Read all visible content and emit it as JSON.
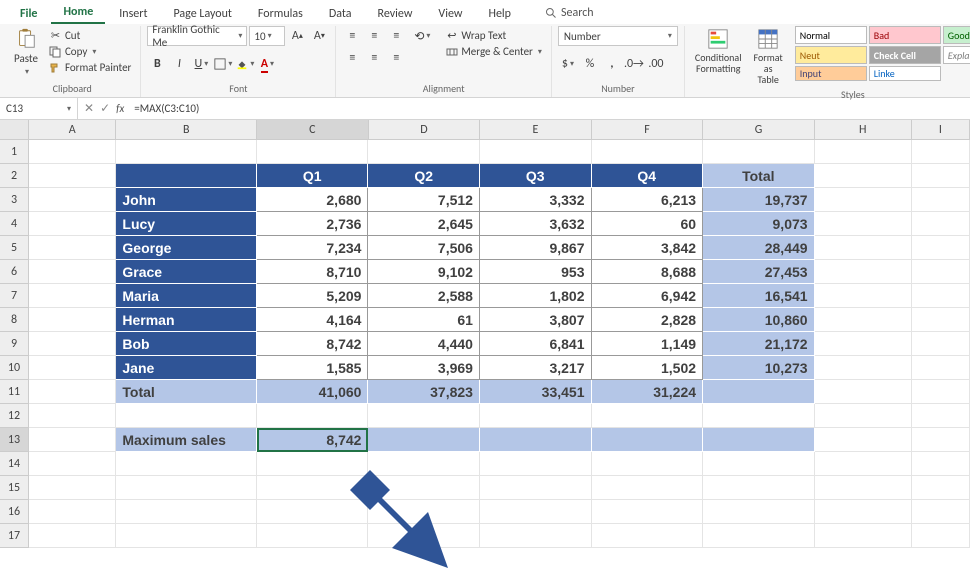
{
  "tabs": {
    "file": "File",
    "home": "Home",
    "insert": "Insert",
    "pagelayout": "Page Layout",
    "formulas": "Formulas",
    "data": "Data",
    "review": "Review",
    "view": "View",
    "help": "Help",
    "search": "Search"
  },
  "clipboard": {
    "paste": "Paste",
    "cut": "Cut",
    "copy": "Copy",
    "fmtpaint": "Format Painter",
    "label": "Clipboard"
  },
  "font": {
    "name": "Franklin Gothic Me",
    "size": "10",
    "label": "Font"
  },
  "alignment": {
    "wrap": "Wrap Text",
    "merge": "Merge & Center",
    "label": "Alignment"
  },
  "number": {
    "format": "Number",
    "label": "Number"
  },
  "styles": {
    "cond": "Conditional Formatting",
    "fat": "Format as Table",
    "cells": {
      "normal": "Normal",
      "bad": "Bad",
      "good": "Good",
      "neut": "Neut",
      "check": "Check Cell",
      "expl": "Explanatory ...",
      "input": "Input",
      "link": "Linke"
    },
    "colors": {
      "normal_bg": "#ffffff",
      "normal_fg": "#000000",
      "bad_bg": "#ffc7ce",
      "bad_fg": "#9c0006",
      "good_bg": "#c6efce",
      "good_fg": "#006100",
      "neut_bg": "#ffeb9c",
      "neut_fg": "#9c5700",
      "check_bg": "#a5a5a5",
      "check_fg": "#ffffff",
      "expl_bg": "#ffffff",
      "expl_fg": "#7f7f7f",
      "input_bg": "#ffcc99",
      "input_fg": "#3f3f76",
      "link_bg": "#ffffff",
      "link_fg": "#0563c1"
    },
    "label": "Styles"
  },
  "fbar": {
    "cellref": "C13",
    "formula": "=MAX(C3:C10)"
  },
  "cols": {
    "widths": {
      "A": 90,
      "B": 145,
      "C": 115,
      "D": 115,
      "E": 115,
      "F": 115,
      "G": 115,
      "H": 100,
      "I": 60
    },
    "letters": [
      "A",
      "B",
      "C",
      "D",
      "E",
      "F",
      "G",
      "H",
      "I"
    ]
  },
  "table": {
    "header_bg": "#2f5496",
    "header_fg": "#ffffff",
    "total_bg": "#b4c6e7",
    "quarters": [
      "Q1",
      "Q2",
      "Q3",
      "Q4"
    ],
    "total_label": "Total",
    "rows": [
      {
        "name": "John",
        "v": [
          "2,680",
          "7,512",
          "3,332",
          "6,213"
        ],
        "t": "19,737"
      },
      {
        "name": "Lucy",
        "v": [
          "2,736",
          "2,645",
          "3,632",
          "60"
        ],
        "t": "9,073"
      },
      {
        "name": "George",
        "v": [
          "7,234",
          "7,506",
          "9,867",
          "3,842"
        ],
        "t": "28,449"
      },
      {
        "name": "Grace",
        "v": [
          "8,710",
          "9,102",
          "953",
          "8,688"
        ],
        "t": "27,453"
      },
      {
        "name": "Maria",
        "v": [
          "5,209",
          "2,588",
          "1,802",
          "6,942"
        ],
        "t": "16,541"
      },
      {
        "name": "Herman",
        "v": [
          "4,164",
          "61",
          "3,807",
          "2,828"
        ],
        "t": "10,860"
      },
      {
        "name": "Bob",
        "v": [
          "8,742",
          "4,440",
          "6,841",
          "1,149"
        ],
        "t": "21,172"
      },
      {
        "name": "Jane",
        "v": [
          "1,585",
          "3,969",
          "3,217",
          "1,502"
        ],
        "t": "10,273"
      }
    ],
    "totals_row": {
      "label": "Total",
      "v": [
        "41,060",
        "37,823",
        "33,451",
        "31,224"
      ]
    },
    "max_label": "Maximum sales",
    "max_value": "8,742"
  },
  "arrow_color": "#2f5496"
}
